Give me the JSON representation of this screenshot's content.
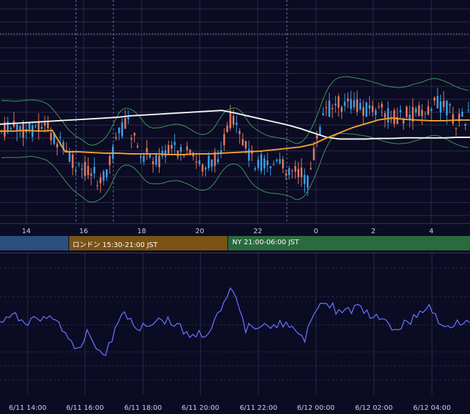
{
  "colors": {
    "background": "#0b0b23",
    "grid": "#2a2c4a",
    "up_candle": "#3aa0e8",
    "down_candle": "#e07a5f",
    "ma_long": "#f2f2f2",
    "ma_short": "#f0a030",
    "bollinger": "#3f9a5a",
    "rsi_line": "#6a72ff",
    "session_tokyo": "#2a4f7c",
    "session_london": "#7a5214",
    "session_ny": "#2a6a3f"
  },
  "chart_data": [
    {
      "type": "candlestick",
      "x_ticks": [
        "14",
        "16",
        "18",
        "20",
        "22",
        "0",
        "2",
        "4"
      ],
      "x_range_hours": [
        13.0,
        29.2
      ],
      "series": [
        {
          "type": "moving_average_long",
          "values": [
            183,
            182,
            181,
            180,
            179,
            178,
            177,
            176,
            175,
            174,
            172,
            171,
            170,
            169,
            168,
            167,
            166,
            165,
            164,
            163,
            162,
            161,
            160,
            160,
            161,
            162,
            163,
            164,
            165,
            165,
            166,
            166,
            167,
            168,
            169,
            169,
            170
          ]
        },
        {
          "type": "moving_average_short",
          "values": [
            190,
            190,
            189,
            190,
            189,
            190,
            190,
            191,
            192,
            192,
            193,
            193,
            193,
            194,
            194,
            193,
            193,
            192,
            191,
            190,
            189,
            187,
            185,
            183,
            180,
            178,
            177,
            176,
            177,
            178,
            179,
            181,
            182,
            183,
            183,
            182,
            182
          ]
        }
      ]
    },
    {
      "type": "line",
      "x_ticks": [
        "6/11 14:00",
        "6/11 16:00",
        "6/11 18:00",
        "6/11 20:00",
        "6/11 22:00",
        "6/12 00:00",
        "6/12 02:00",
        "6/12 04:00"
      ]
    }
  ],
  "sessions": [
    {
      "label": ""
    },
    {
      "label": "ロンドン 15:30-21:00 JST"
    },
    {
      "label": "NY 21:00-06:00 JST"
    }
  ]
}
